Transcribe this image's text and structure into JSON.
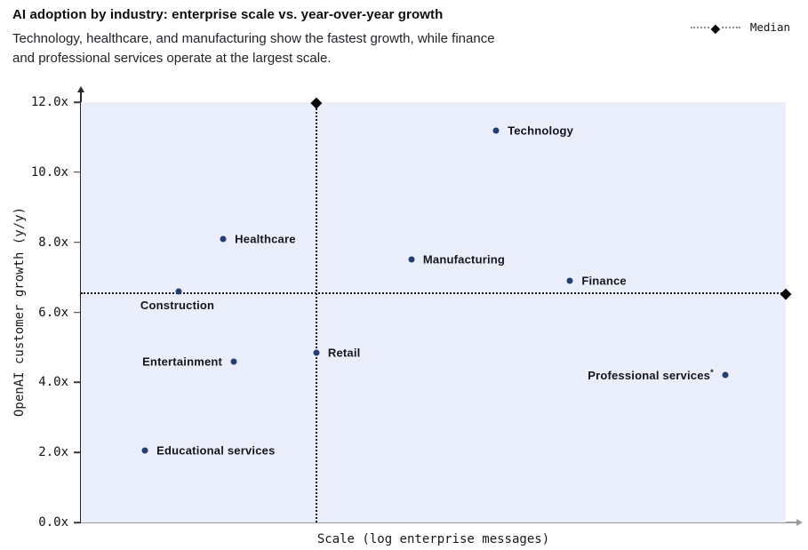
{
  "header": {
    "title": "AI adoption by industry: enterprise scale vs. year-over-year growth",
    "subtitle_lines": [
      "Technology, healthcare, and manufacturing show the fastest growth, while finance",
      "and professional services operate at the largest scale."
    ]
  },
  "legend": {
    "label": "Median",
    "marker": "diamond-on-dotted-line"
  },
  "colors": {
    "plot_background": "#e9eefa",
    "point": "#253e6f",
    "median_line": "#17171c",
    "x_axis": "#9b9ba1",
    "y_axis": "#26262c",
    "text": "#121217"
  },
  "chart_data": {
    "type": "scatter",
    "title": "AI adoption by industry: enterprise scale vs. year-over-year growth",
    "xlabel": "Scale (log enterprise messages)",
    "ylabel": "OpenAI customer growth (y/y)",
    "ylim": [
      0,
      12
    ],
    "x_axis_note": "x values shown as percent of axis width; no numeric x ticks in figure (log scale)",
    "grid": false,
    "legend_position": "top-right",
    "y_ticks": [
      {
        "value": 0,
        "label": "0.0x"
      },
      {
        "value": 2,
        "label": "2.0x"
      },
      {
        "value": 4,
        "label": "4.0x"
      },
      {
        "value": 6,
        "label": "6.0x"
      },
      {
        "value": 8,
        "label": "8.0x"
      },
      {
        "value": 10,
        "label": "10.0x"
      },
      {
        "value": 12,
        "label": "12.0x"
      }
    ],
    "median": {
      "y_value": 6.55,
      "x_percent": 33.4,
      "label": "Median"
    },
    "points": [
      {
        "label": "Technology",
        "y_growth": 11.2,
        "x_percent": 58.9,
        "label_side": "right"
      },
      {
        "label": "Healthcare",
        "y_growth": 8.1,
        "x_percent": 20.2,
        "label_side": "right"
      },
      {
        "label": "Manufacturing",
        "y_growth": 7.5,
        "x_percent": 46.9,
        "label_side": "right"
      },
      {
        "label": "Finance",
        "y_growth": 6.9,
        "x_percent": 69.4,
        "label_side": "right"
      },
      {
        "label": "Construction",
        "y_growth": 6.6,
        "x_percent": 13.9,
        "label_side": "below"
      },
      {
        "label": "Retail",
        "y_growth": 4.85,
        "x_percent": 33.4,
        "label_side": "right"
      },
      {
        "label": "Entertainment",
        "y_growth": 4.6,
        "x_percent": 21.7,
        "label_side": "left"
      },
      {
        "label": "Professional services",
        "label_suffix": "*",
        "y_growth": 4.2,
        "x_percent": 91.4,
        "label_side": "left"
      },
      {
        "label": "Educational services",
        "y_growth": 2.05,
        "x_percent": 9.1,
        "label_side": "right"
      }
    ]
  }
}
